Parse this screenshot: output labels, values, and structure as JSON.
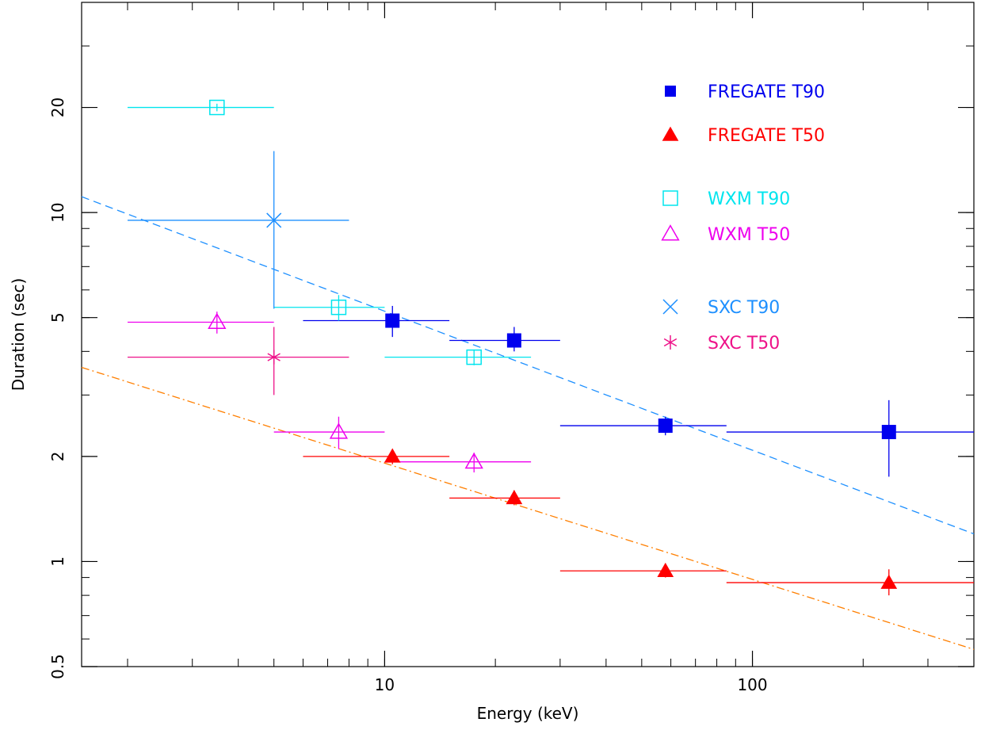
{
  "chart_data": {
    "type": "scatter",
    "title": "",
    "xlabel": "Energy (keV)",
    "ylabel": "Duration (sec)",
    "xscale": "log",
    "yscale": "log",
    "xlim": [
      1.5,
      400
    ],
    "ylim": [
      0.5,
      40
    ],
    "grid": false,
    "legend": "top-right",
    "x_ticks": [
      {
        "value": 10,
        "label": "10"
      },
      {
        "value": 100,
        "label": "100"
      }
    ],
    "y_ticks": [
      {
        "value": 0.5,
        "label": "0.5"
      },
      {
        "value": 1,
        "label": "1"
      },
      {
        "value": 2,
        "label": "2"
      },
      {
        "value": 5,
        "label": "5"
      },
      {
        "value": 10,
        "label": "10"
      },
      {
        "value": 20,
        "label": "20"
      }
    ],
    "series": [
      {
        "name": "FREGATE T90",
        "marker": "filled-square",
        "color": "#0000ee",
        "points": [
          {
            "x": 10.5,
            "y": 4.9,
            "xerr": [
              6,
              15
            ],
            "yerr": [
              4.4,
              5.4
            ]
          },
          {
            "x": 22.5,
            "y": 4.3,
            "xerr": [
              15,
              30
            ],
            "yerr": [
              4.0,
              4.7
            ]
          },
          {
            "x": 58,
            "y": 2.45,
            "xerr": [
              30,
              85
            ],
            "yerr": [
              2.3,
              2.6
            ]
          },
          {
            "x": 235,
            "y": 2.35,
            "xerr": [
              85,
              400
            ],
            "yerr": [
              1.75,
              2.9
            ]
          }
        ]
      },
      {
        "name": "FREGATE T50",
        "marker": "filled-triangle",
        "color": "#ff0000",
        "points": [
          {
            "x": 10.5,
            "y": 2.0,
            "xerr": [
              6,
              15
            ],
            "yerr": [
              1.9,
              2.1
            ]
          },
          {
            "x": 22.5,
            "y": 1.52,
            "xerr": [
              15,
              30
            ],
            "yerr": [
              1.45,
              1.6
            ]
          },
          {
            "x": 58,
            "y": 0.94,
            "xerr": [
              30,
              85
            ],
            "yerr": [
              0.9,
              0.98
            ]
          },
          {
            "x": 235,
            "y": 0.87,
            "xerr": [
              85,
              400
            ],
            "yerr": [
              0.8,
              0.95
            ]
          }
        ]
      },
      {
        "name": "WXM T90",
        "marker": "open-square",
        "color": "#00e5ee",
        "points": [
          {
            "x": 3.5,
            "y": 20,
            "xerr": [
              2,
              5
            ],
            "yerr": [
              19.5,
              20.5
            ]
          },
          {
            "x": 7.5,
            "y": 5.35,
            "xerr": [
              5,
              10
            ],
            "yerr": [
              4.9,
              5.8
            ]
          },
          {
            "x": 17.5,
            "y": 3.85,
            "xerr": [
              10,
              25
            ],
            "yerr": [
              3.65,
              4.05
            ]
          }
        ]
      },
      {
        "name": "WXM T50",
        "marker": "open-triangle",
        "color": "#ee00ee",
        "points": [
          {
            "x": 3.5,
            "y": 4.85,
            "xerr": [
              2,
              5
            ],
            "yerr": [
              4.5,
              5.2
            ]
          },
          {
            "x": 7.5,
            "y": 2.35,
            "xerr": [
              5,
              10
            ],
            "yerr": [
              2.1,
              2.6
            ]
          },
          {
            "x": 17.5,
            "y": 1.93,
            "xerr": [
              10,
              25
            ],
            "yerr": [
              1.8,
              2.05
            ]
          }
        ]
      },
      {
        "name": "SXC T90",
        "marker": "x",
        "color": "#1e90ff",
        "points": [
          {
            "x": 5,
            "y": 9.5,
            "xerr": [
              2,
              8
            ],
            "yerr": [
              5.3,
              15
            ]
          }
        ]
      },
      {
        "name": "SXC T50",
        "marker": "asterisk",
        "color": "#ee1289",
        "points": [
          {
            "x": 5,
            "y": 3.85,
            "xerr": [
              2,
              8
            ],
            "yerr": [
              3.0,
              4.7
            ]
          }
        ]
      }
    ],
    "fit_lines": [
      {
        "style": "dashed",
        "color": "#1e90ff",
        "from": {
          "x": 1.5,
          "y": 11.1
        },
        "to": {
          "x": 400,
          "y": 1.2
        }
      },
      {
        "style": "dash-dot",
        "color": "#ff7f00",
        "from": {
          "x": 1.5,
          "y": 3.6
        },
        "to": {
          "x": 400,
          "y": 0.56
        }
      }
    ]
  }
}
